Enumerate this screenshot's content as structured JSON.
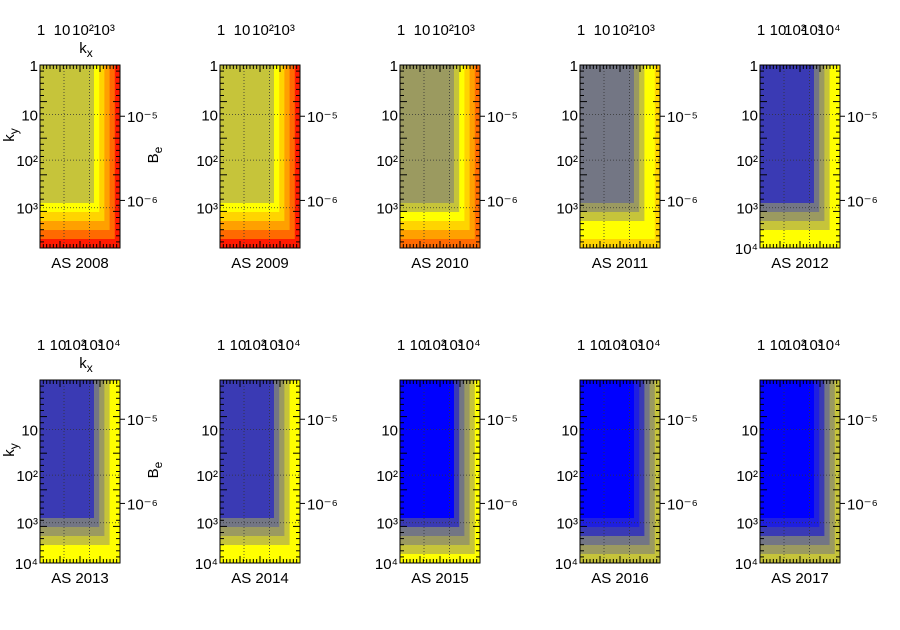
{
  "figure": {
    "labels": {
      "kx": "k",
      "kx_sub": "x",
      "ky": "k",
      "ky_sub": "y",
      "be": "B",
      "be_sub": "e"
    }
  },
  "colors": {
    "light_yellow": "#c6c43a",
    "olive": "#9b9a60",
    "gray": "#737684",
    "slate_blue": "#3a3ab4",
    "blue": "#0000ff",
    "yellow": "#ffff00",
    "orange": "#ff6a00",
    "red": "#ff1a00"
  },
  "chart_data": [
    {
      "type": "heatmap",
      "title": "AS 2008",
      "x_ticks": [
        "1",
        "10",
        "10²",
        "10³"
      ],
      "y_ticks": [
        "1",
        "10",
        "10²",
        "10³"
      ],
      "colorbar_ticks": [
        "10⁻⁵",
        "10⁻⁶"
      ],
      "xlabel": "kx",
      "ylabel": "ky",
      "colorbar_label": "Be",
      "bulk_color": "#c6c43a",
      "edge_gradient": [
        "#ffff00",
        "#ffd400",
        "#ffa000",
        "#ff6a00",
        "#ff1a00"
      ]
    },
    {
      "type": "heatmap",
      "title": "AS 2009",
      "x_ticks": [
        "1",
        "10",
        "10²",
        "10³"
      ],
      "y_ticks": [
        "1",
        "10",
        "10²",
        "10³"
      ],
      "colorbar_ticks": [
        "10⁻⁵",
        "10⁻⁶"
      ],
      "bulk_color": "#c6c43a",
      "edge_gradient": [
        "#ffff00",
        "#ffd400",
        "#ffa000",
        "#ff6a00",
        "#ff1a00"
      ]
    },
    {
      "type": "heatmap",
      "title": "AS 2010",
      "x_ticks": [
        "1",
        "10",
        "10²",
        "10³"
      ],
      "y_ticks": [
        "1",
        "10",
        "10²",
        "10³"
      ],
      "colorbar_ticks": [
        "10⁻⁵",
        "10⁻⁶"
      ],
      "bulk_color": "#9b9a60",
      "edge_gradient": [
        "#c6c43a",
        "#ffff00",
        "#ffd400",
        "#ffa000",
        "#ff6a00"
      ]
    },
    {
      "type": "heatmap",
      "title": "AS 2011",
      "x_ticks": [
        "1",
        "10",
        "10²",
        "10³"
      ],
      "y_ticks": [
        "1",
        "10",
        "10²",
        "10³"
      ],
      "colorbar_ticks": [
        "10⁻⁵",
        "10⁻⁶"
      ],
      "bulk_color": "#737684",
      "edge_gradient": [
        "#9b9a60",
        "#c6c43a",
        "#ffff00",
        "#ffff00",
        "#ffd400"
      ]
    },
    {
      "type": "heatmap",
      "title": "AS 2012",
      "x_ticks": [
        "1",
        "10",
        "10²",
        "10³",
        "10⁴"
      ],
      "y_ticks": [
        "1",
        "10",
        "10²",
        "10³",
        "10⁴"
      ],
      "colorbar_ticks": [
        "10⁻⁵",
        "10⁻⁶"
      ],
      "bulk_color": "#3a3ab4",
      "edge_gradient": [
        "#737684",
        "#9b9a60",
        "#c6c43a",
        "#ffff00",
        "#ffff00"
      ]
    },
    {
      "type": "heatmap",
      "title": "AS 2013",
      "x_ticks": [
        "1",
        "10",
        "10²",
        "10³",
        "10⁴"
      ],
      "y_ticks": [
        "10",
        "10²",
        "10³",
        "10⁴"
      ],
      "colorbar_ticks": [
        "10⁻⁵",
        "10⁻⁶"
      ],
      "xlabel": "kx",
      "ylabel": "ky",
      "colorbar_label": "Be",
      "bulk_color": "#3a3ab4",
      "edge_gradient": [
        "#737684",
        "#9b9a60",
        "#c6c43a",
        "#ffff00",
        "#ffff00"
      ]
    },
    {
      "type": "heatmap",
      "title": "AS 2014",
      "x_ticks": [
        "1",
        "10",
        "10²",
        "10³",
        "10⁴"
      ],
      "y_ticks": [
        "10",
        "10²",
        "10³",
        "10⁴"
      ],
      "colorbar_ticks": [
        "10⁻⁵",
        "10⁻⁶"
      ],
      "bulk_color": "#3a3ab4",
      "edge_gradient": [
        "#737684",
        "#9b9a60",
        "#c6c43a",
        "#ffff00",
        "#ffff00"
      ]
    },
    {
      "type": "heatmap",
      "title": "AS 2015",
      "x_ticks": [
        "1",
        "10",
        "10²",
        "10³",
        "10⁴"
      ],
      "y_ticks": [
        "10",
        "10²",
        "10³",
        "10⁴"
      ],
      "colorbar_ticks": [
        "10⁻⁵",
        "10⁻⁶"
      ],
      "bulk_color": "#0000ff",
      "edge_gradient": [
        "#3a3ab4",
        "#737684",
        "#9b9a60",
        "#c6c43a",
        "#ffff00"
      ]
    },
    {
      "type": "heatmap",
      "title": "AS 2016",
      "x_ticks": [
        "1",
        "10",
        "10²",
        "10³",
        "10⁴"
      ],
      "y_ticks": [
        "10",
        "10²",
        "10³",
        "10⁴"
      ],
      "colorbar_ticks": [
        "10⁻⁵",
        "10⁻⁶"
      ],
      "bulk_color": "#0000ff",
      "edge_gradient": [
        "#1f1fe0",
        "#3a3ab4",
        "#737684",
        "#9b9a60",
        "#c6c43a"
      ]
    },
    {
      "type": "heatmap",
      "title": "AS 2017",
      "x_ticks": [
        "1",
        "10",
        "10²",
        "10³",
        "10⁴"
      ],
      "y_ticks": [
        "10",
        "10²",
        "10³",
        "10⁴"
      ],
      "colorbar_ticks": [
        "10⁻⁵",
        "10⁻⁶"
      ],
      "bulk_color": "#0000ff",
      "edge_gradient": [
        "#1f1fe0",
        "#3a3ab4",
        "#737684",
        "#9b9a60",
        "#c6c43a"
      ]
    }
  ]
}
